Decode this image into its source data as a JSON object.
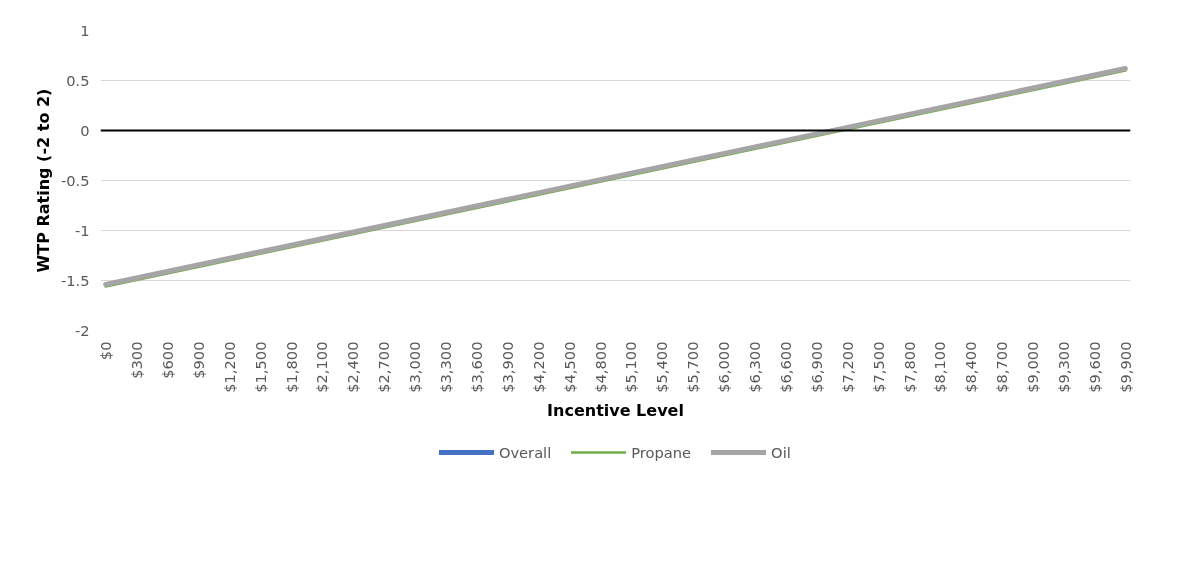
{
  "chart_data": {
    "type": "line",
    "xlabel": "Incentive Level",
    "ylabel": "WTP Rating (-2 to 2)",
    "x": [
      0,
      9900
    ],
    "xlim": [
      -50,
      9950
    ],
    "xticks": [
      {
        "value": 0,
        "label": "$0"
      },
      {
        "value": 300,
        "label": "$300"
      },
      {
        "value": 600,
        "label": "$600"
      },
      {
        "value": 900,
        "label": "$900"
      },
      {
        "value": 1200,
        "label": "$1,200"
      },
      {
        "value": 1500,
        "label": "$1,500"
      },
      {
        "value": 1800,
        "label": "$1,800"
      },
      {
        "value": 2100,
        "label": "$2,100"
      },
      {
        "value": 2400,
        "label": "$2,400"
      },
      {
        "value": 2700,
        "label": "$2,700"
      },
      {
        "value": 3000,
        "label": "$3,000"
      },
      {
        "value": 3300,
        "label": "$3,300"
      },
      {
        "value": 3600,
        "label": "$3,600"
      },
      {
        "value": 3900,
        "label": "$3,900"
      },
      {
        "value": 4200,
        "label": "$4,200"
      },
      {
        "value": 4500,
        "label": "$4,500"
      },
      {
        "value": 4800,
        "label": "$4,800"
      },
      {
        "value": 5100,
        "label": "$5,100"
      },
      {
        "value": 5400,
        "label": "$5,400"
      },
      {
        "value": 5700,
        "label": "$5,700"
      },
      {
        "value": 6000,
        "label": "$6,000"
      },
      {
        "value": 6300,
        "label": "$6,300"
      },
      {
        "value": 6600,
        "label": "$6,600"
      },
      {
        "value": 6900,
        "label": "$6,900"
      },
      {
        "value": 7200,
        "label": "$7,200"
      },
      {
        "value": 7500,
        "label": "$7,500"
      },
      {
        "value": 7800,
        "label": "$7,800"
      },
      {
        "value": 8100,
        "label": "$8,100"
      },
      {
        "value": 8400,
        "label": "$8,400"
      },
      {
        "value": 8700,
        "label": "$8,700"
      },
      {
        "value": 9000,
        "label": "$9,000"
      },
      {
        "value": 9300,
        "label": "$9,300"
      },
      {
        "value": 9600,
        "label": "$9,600"
      },
      {
        "value": 9900,
        "label": "$9,900"
      }
    ],
    "ylim": [
      -2,
      1
    ],
    "yticks": [
      -2,
      -1.5,
      -1,
      -0.5,
      0,
      0.5,
      1
    ],
    "series": [
      {
        "name": "Overall",
        "color": "#4472c4",
        "values": [
          null,
          null
        ]
      },
      {
        "name": "Propane",
        "color": "#70ad47",
        "values": [
          -1.56,
          0.6
        ]
      },
      {
        "name": "Oil",
        "color": "#a5a5a5",
        "values": [
          -1.54,
          0.62
        ]
      }
    ],
    "ref_lines": [
      {
        "axis": "y",
        "value": 0,
        "color": "#000000"
      }
    ],
    "grid": "y",
    "legend": "bottom",
    "marker": "none",
    "line_style": "solid"
  }
}
